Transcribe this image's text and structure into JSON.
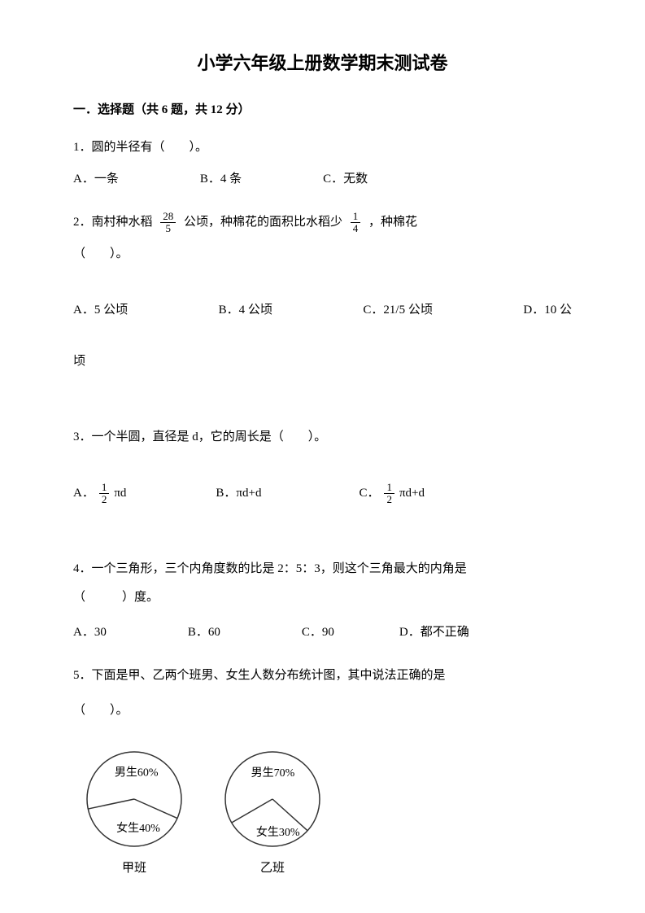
{
  "title": "小学六年级上册数学期末测试卷",
  "section1": {
    "header": "一．选择题（共 6 题，共 12 分）"
  },
  "q1": {
    "text": "1．圆的半径有（　　）。",
    "optA": "A．一条",
    "optB": "B．4 条",
    "optC": "C．无数"
  },
  "q2": {
    "prefix": "2．南村种水稻",
    "frac1_num": "28",
    "frac1_den": "5",
    "mid": "公顷，种棉花的面积比水稻少",
    "frac2_num": "1",
    "frac2_den": "4",
    "suffix": "，种棉花",
    "line2": "（　　）。",
    "optA": "A．5 公顷",
    "optB": "B．4 公顷",
    "optC": "C．21/5 公顷",
    "optD_prefix": "D．10 公",
    "optD_line2": "顷"
  },
  "q3": {
    "text": "3．一个半圆，直径是 d，它的周长是（　　）。",
    "optA_label": "A．",
    "optA_num": "1",
    "optA_den": "2",
    "optA_after": "πd",
    "optB": "B．πd+d",
    "optC_label": "C．",
    "optC_num": "1",
    "optC_den": "2",
    "optC_after": "πd+d"
  },
  "q4": {
    "line1": "4．一个三角形，三个内角度数的比是 2：5：3，则这个三角最大的内角是",
    "line2": "（　　　）度。",
    "optA": "A．30",
    "optB": "B．60",
    "optC": "C．90",
    "optD": "D．都不正确"
  },
  "q5": {
    "line1": "5．下面是甲、乙两个班男、女生人数分布统计图，其中说法正确的是",
    "line2": "（　　）。"
  },
  "pieA": {
    "type": "pie",
    "label": "甲班",
    "slices": [
      {
        "label": "男生60%",
        "value": 60
      },
      {
        "label": "女生40%",
        "value": 40
      }
    ],
    "radius": 58,
    "stroke": "#333333",
    "fill": "#ffffff",
    "fontsize": 14
  },
  "pieB": {
    "type": "pie",
    "label": "乙班",
    "slices": [
      {
        "label": "男生70%",
        "value": 70
      },
      {
        "label": "女生30%",
        "value": 30
      }
    ],
    "radius": 58,
    "stroke": "#333333",
    "fill": "#ffffff",
    "fontsize": 14
  },
  "colors": {
    "text": "#000000",
    "background": "#ffffff",
    "chart_stroke": "#333333"
  }
}
